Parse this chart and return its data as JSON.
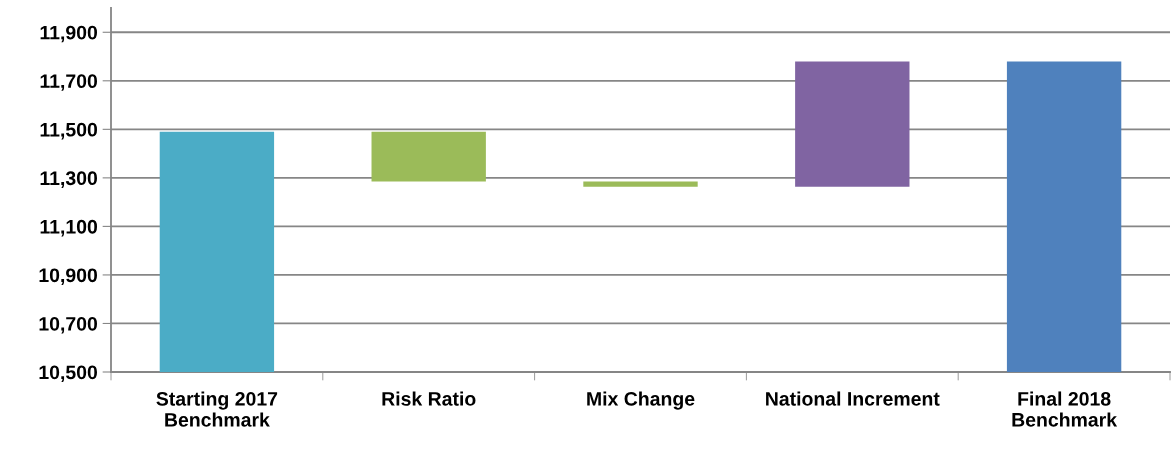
{
  "chart_data": {
    "type": "bar",
    "categories": [
      "Starting 2017\nBenchmark",
      "Risk Ratio",
      "Mix Change",
      "National Increment",
      "Final 2018\nBenchmark"
    ],
    "values": [
      990,
      -205,
      -22,
      517,
      1280
    ],
    "base": [
      10500,
      11490,
      11285,
      11263,
      10500
    ],
    "colors": [
      "#4bacc6",
      "#9bbb59",
      "#9bbb59",
      "#8064a2",
      "#4f81bd"
    ],
    "ylim": [
      10500,
      12000
    ],
    "yticks": [
      {
        "value": 10500,
        "label": "10,500"
      },
      {
        "value": 10700,
        "label": "10,700"
      },
      {
        "value": 10900,
        "label": "10,900"
      },
      {
        "value": 11100,
        "label": "11,100"
      },
      {
        "value": 11300,
        "label": "11,300"
      },
      {
        "value": 11500,
        "label": "11,500"
      },
      {
        "value": 11700,
        "label": "11,700"
      },
      {
        "value": 11900,
        "label": "11,900"
      }
    ],
    "grid": "y",
    "legend": false
  }
}
